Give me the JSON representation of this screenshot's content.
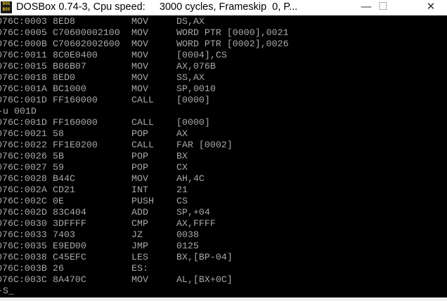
{
  "window": {
    "title": "DOSBox 0.74-3, Cpu speed:     3000 cycles, Frameskip  0, P...",
    "icon": "dosbox-icon",
    "icon_text": "DOS BOX",
    "minimize_glyph": "—",
    "maximize_glyph": "☐",
    "close_glyph": "✕"
  },
  "terminal": {
    "lines": [
      {
        "addr": "076C:0003",
        "bytes": "8ED8",
        "mnemonic": "MOV",
        "operands": "DS,AX"
      },
      {
        "addr": "076C:0005",
        "bytes": "C70600002100",
        "mnemonic": "MOV",
        "operands": "WORD PTR [0000],0021"
      },
      {
        "addr": "076C:000B",
        "bytes": "C70602002600",
        "mnemonic": "MOV",
        "operands": "WORD PTR [0002],0026"
      },
      {
        "addr": "076C:0011",
        "bytes": "8C0E0400",
        "mnemonic": "MOV",
        "operands": "[0004],CS"
      },
      {
        "addr": "076C:0015",
        "bytes": "B86B07",
        "mnemonic": "MOV",
        "operands": "AX,076B"
      },
      {
        "addr": "076C:0018",
        "bytes": "8ED0",
        "mnemonic": "MOV",
        "operands": "SS,AX"
      },
      {
        "addr": "076C:001A",
        "bytes": "BC1000",
        "mnemonic": "MOV",
        "operands": "SP,0010"
      },
      {
        "addr": "076C:001D",
        "bytes": "FF160000",
        "mnemonic": "CALL",
        "operands": "[0000]"
      },
      {
        "command": "-u 001D"
      },
      {
        "addr": "076C:001D",
        "bytes": "FF160000",
        "mnemonic": "CALL",
        "operands": "[0000]"
      },
      {
        "addr": "076C:0021",
        "bytes": "58",
        "mnemonic": "POP",
        "operands": "AX"
      },
      {
        "addr": "076C:0022",
        "bytes": "FF1E0200",
        "mnemonic": "CALL",
        "operands": "FAR [0002]"
      },
      {
        "addr": "076C:0026",
        "bytes": "5B",
        "mnemonic": "POP",
        "operands": "BX"
      },
      {
        "addr": "076C:0027",
        "bytes": "59",
        "mnemonic": "POP",
        "operands": "CX"
      },
      {
        "addr": "076C:0028",
        "bytes": "B44C",
        "mnemonic": "MOV",
        "operands": "AH,4C"
      },
      {
        "addr": "076C:002A",
        "bytes": "CD21",
        "mnemonic": "INT",
        "operands": "21"
      },
      {
        "addr": "076C:002C",
        "bytes": "0E",
        "mnemonic": "PUSH",
        "operands": "CS"
      },
      {
        "addr": "076C:002D",
        "bytes": "83C404",
        "mnemonic": "ADD",
        "operands": "SP,+04"
      },
      {
        "addr": "076C:0030",
        "bytes": "3DFFFF",
        "mnemonic": "CMP",
        "operands": "AX,FFFF"
      },
      {
        "addr": "076C:0033",
        "bytes": "7403",
        "mnemonic": "JZ",
        "operands": "0038"
      },
      {
        "addr": "076C:0035",
        "bytes": "E9ED00",
        "mnemonic": "JMP",
        "operands": "0125"
      },
      {
        "addr": "076C:0038",
        "bytes": "C45EFC",
        "mnemonic": "LES",
        "operands": "BX,[BP-04]"
      },
      {
        "addr": "076C:003B",
        "bytes": "26",
        "mnemonic": "ES:",
        "operands": ""
      },
      {
        "addr": "076C:003C",
        "bytes": "8A470C",
        "mnemonic": "MOV",
        "operands": "AL,[BX+0C]"
      },
      {
        "command": "-S_"
      }
    ]
  }
}
